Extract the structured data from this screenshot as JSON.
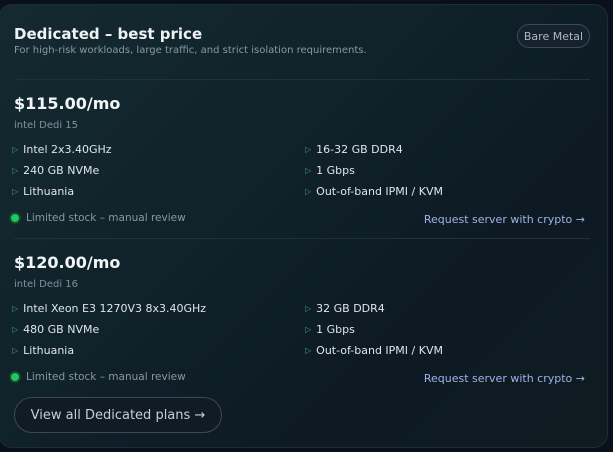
{
  "header": {
    "title": "Dedicated – best price",
    "subtitle": "For high-risk workloads, large traffic, and strict isolation requirements.",
    "badge": "Bare Metal"
  },
  "plans": [
    {
      "price": "$115.00/mo",
      "name": "intel Dedi 15",
      "specs_left": [
        "Intel 2x3.40GHz",
        "240 GB NVMe",
        "Lithuania"
      ],
      "specs_right": [
        "16-32 GB DDR4",
        "1 Gbps",
        "Out-of-band IPMI / KVM"
      ],
      "status": "Limited stock – manual review",
      "cta": "Request server with crypto →"
    },
    {
      "price": "$120.00/mo",
      "name": "intel Dedi 16",
      "specs_left": [
        "Intel Xeon E3 1270V3 8x3.40GHz",
        "480 GB NVMe",
        "Lithuania"
      ],
      "specs_right": [
        "32 GB DDR4",
        "1 Gbps",
        "Out-of-band IPMI / KVM"
      ],
      "status": "Limited stock – manual review",
      "cta": "Request server with crypto →"
    }
  ],
  "footer": {
    "view_all": "View all Dedicated plans →"
  },
  "colors": {
    "accent_link": "#9fb2e6",
    "status_dot": "#22c55e",
    "bullet": "#3fa36a"
  },
  "icons": {
    "bullet": "triangle-right-icon",
    "status": "status-dot-icon"
  }
}
